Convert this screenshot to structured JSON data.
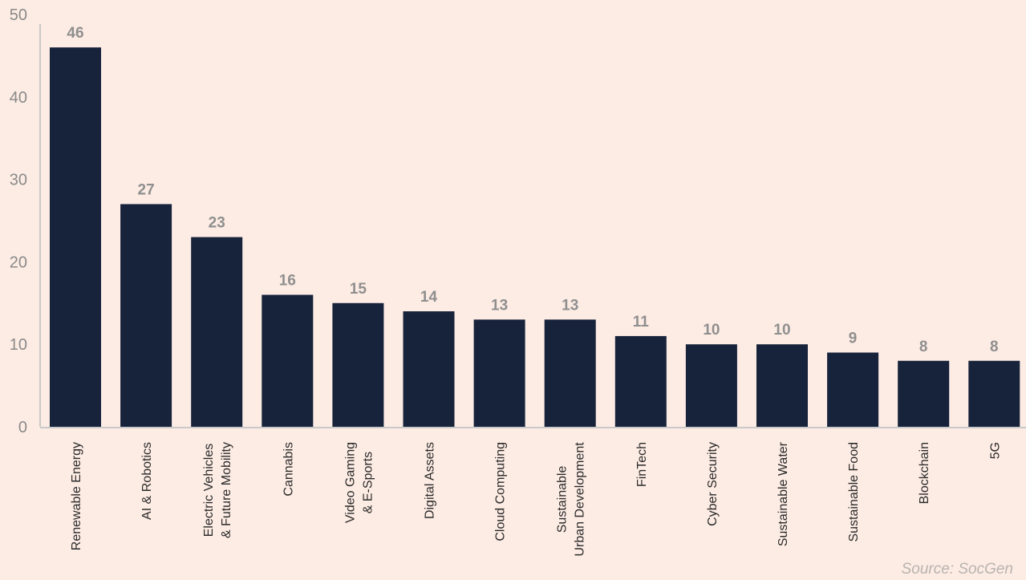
{
  "source": "Source: SocGen",
  "colors": {
    "bar": "#17223b",
    "axis": "#c9c9c9",
    "background": "#fdece4"
  },
  "chart_data": {
    "type": "bar",
    "categories": [
      [
        "Renewable Energy"
      ],
      [
        "AI & Robotics"
      ],
      [
        "Electric Vehicles",
        "& Future Mobility"
      ],
      [
        "Cannabis"
      ],
      [
        "Video Gaming",
        "& E-Sports"
      ],
      [
        "Digital Assets"
      ],
      [
        "Cloud Computing"
      ],
      [
        "Sustainable",
        "Urban Development"
      ],
      [
        "FinTech"
      ],
      [
        "Cyber Security"
      ],
      [
        "Sustainable Water"
      ],
      [
        "Sustainable Food"
      ],
      [
        "Blockchain"
      ],
      [
        "5G"
      ]
    ],
    "values": [
      46,
      27,
      23,
      16,
      15,
      14,
      13,
      13,
      11,
      10,
      10,
      9,
      8,
      8
    ],
    "data_labels": [
      "46",
      "27",
      "23",
      "16",
      "15",
      "14",
      "13",
      "13",
      "11",
      "10",
      "10",
      "9",
      "8",
      "8"
    ],
    "yticks": [
      0,
      10,
      20,
      30,
      40,
      50
    ],
    "ylim": [
      0,
      50
    ],
    "grid": false,
    "legend": "none"
  }
}
